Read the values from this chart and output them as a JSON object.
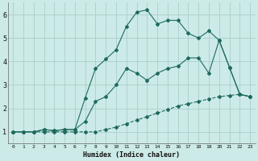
{
  "xlabel": "Humidex (Indice chaleur)",
  "bg_color": "#cceae7",
  "grid_color": "#aacfcc",
  "line_color": "#1e6b5e",
  "xlim": [
    -0.5,
    23.5
  ],
  "ylim": [
    0.5,
    6.5
  ],
  "xticks": [
    0,
    1,
    2,
    3,
    4,
    5,
    6,
    7,
    8,
    9,
    10,
    11,
    12,
    13,
    14,
    15,
    16,
    17,
    18,
    19,
    20,
    21,
    22,
    23
  ],
  "yticks": [
    1,
    2,
    3,
    4,
    5,
    6
  ],
  "line1_x": [
    0,
    1,
    2,
    3,
    4,
    5,
    6,
    7,
    8,
    9,
    10,
    11,
    12,
    13,
    14,
    15,
    16,
    17,
    18,
    19,
    20,
    21,
    22,
    23
  ],
  "line1_y": [
    1.0,
    1.0,
    1.0,
    1.0,
    1.0,
    1.0,
    1.0,
    1.0,
    1.0,
    1.1,
    1.2,
    1.35,
    1.5,
    1.65,
    1.8,
    1.95,
    2.1,
    2.2,
    2.3,
    2.4,
    2.5,
    2.55,
    2.6,
    2.5
  ],
  "line2_x": [
    0,
    1,
    2,
    3,
    4,
    5,
    6,
    7,
    8,
    9,
    10,
    11,
    12,
    13,
    14,
    15,
    16,
    17,
    18,
    19,
    20,
    21,
    22,
    23
  ],
  "line2_y": [
    1.0,
    1.0,
    1.0,
    1.1,
    1.05,
    1.1,
    1.1,
    1.45,
    2.3,
    2.5,
    3.0,
    3.7,
    3.5,
    3.2,
    3.5,
    3.7,
    3.8,
    4.15,
    4.15,
    3.5,
    4.9,
    3.75,
    2.6,
    2.5
  ],
  "line3_x": [
    0,
    1,
    2,
    3,
    4,
    5,
    6,
    7,
    8,
    9,
    10,
    11,
    12,
    13,
    14,
    15,
    16,
    17,
    18,
    19,
    20,
    21,
    22,
    23
  ],
  "line3_y": [
    1.0,
    1.0,
    1.0,
    1.1,
    1.05,
    1.1,
    1.1,
    2.45,
    3.7,
    4.1,
    4.5,
    5.5,
    6.1,
    6.2,
    5.6,
    5.75,
    5.75,
    5.2,
    5.0,
    5.3,
    4.9,
    3.75,
    2.6,
    2.5
  ]
}
